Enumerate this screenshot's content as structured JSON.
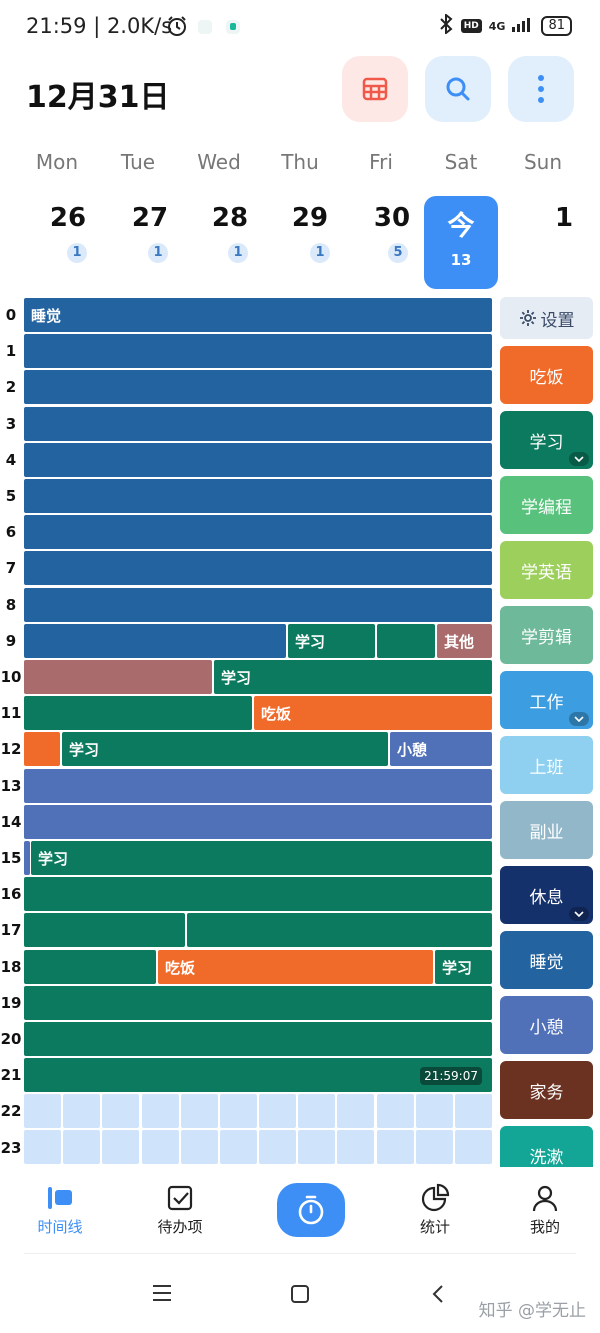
{
  "status_bar": {
    "time_speed": "21:59 | 2.0K/s",
    "network": "4G",
    "battery": "81"
  },
  "header": {
    "date_title": "12月31日"
  },
  "week": {
    "days": [
      {
        "weekday": "Mon",
        "date": "26",
        "count": "1"
      },
      {
        "weekday": "Tue",
        "date": "27",
        "count": "1"
      },
      {
        "weekday": "Wed",
        "date": "28",
        "count": "1"
      },
      {
        "weekday": "Thu",
        "date": "29",
        "count": "1"
      },
      {
        "weekday": "Fri",
        "date": "30",
        "count": "5"
      },
      {
        "weekday": "Sat",
        "date": "今",
        "count": "13"
      },
      {
        "weekday": "Sun",
        "date": "1",
        "count": ""
      }
    ]
  },
  "timeline": {
    "hours": [
      "0",
      "1",
      "2",
      "3",
      "4",
      "5",
      "6",
      "7",
      "8",
      "9",
      "10",
      "11",
      "12",
      "13",
      "14",
      "15",
      "16",
      "17",
      "18",
      "19",
      "20",
      "21",
      "22",
      "23"
    ],
    "labels": {
      "sleep": "睡觉",
      "study_9": "学习",
      "other_9": "其他",
      "study_10": "学习",
      "eat_11": "吃饭",
      "study_12": "学习",
      "rest_12": "小憩",
      "study_15": "学习",
      "eat_18": "吃饭",
      "study_18": "学习",
      "timestamp": "21:59:07"
    }
  },
  "categories": {
    "settings_label": "设置",
    "items": [
      {
        "label": "吃饭",
        "color": "#f06a2a"
      },
      {
        "label": "学习",
        "color": "#0b7a5e"
      },
      {
        "label": "学编程",
        "color": "#58c27d"
      },
      {
        "label": "学英语",
        "color": "#9dcf5c"
      },
      {
        "label": "学剪辑",
        "color": "#6fb99b"
      },
      {
        "label": "工作",
        "color": "#3c9ee0"
      },
      {
        "label": "上班",
        "color": "#8fd0f0"
      },
      {
        "label": "副业",
        "color": "#92b7c9"
      },
      {
        "label": "休息",
        "color": "#14316c"
      },
      {
        "label": "睡觉",
        "color": "#2363a0"
      },
      {
        "label": "小憩",
        "color": "#5070b8"
      },
      {
        "label": "家务",
        "color": "#6b3222"
      },
      {
        "label": "洗漱",
        "color": "#13a596"
      }
    ]
  },
  "bottom_nav": {
    "timeline": "时间线",
    "todo": "待办项",
    "stats": "统计",
    "mine": "我的"
  },
  "watermark": "知乎 @学无止",
  "colors": {
    "accent": "#3d8ff5",
    "sleep": "#2363a0",
    "study": "#0b7a5e",
    "eat": "#f06a2a",
    "rest": "#5070b8",
    "other": "#a96b6b",
    "empty": "#cfe3fb"
  }
}
